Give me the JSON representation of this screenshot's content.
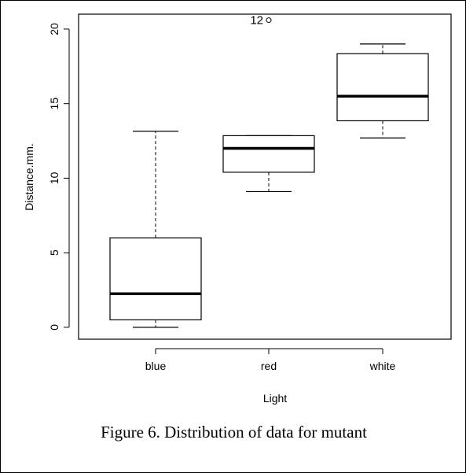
{
  "caption": "Figure 6. Distribution of data for mutant",
  "chart_data": {
    "type": "boxplot",
    "title": "",
    "xlabel": "Light",
    "ylabel": "Distance.mm.",
    "ylim": [
      -0.8,
      21.0
    ],
    "yticks": [
      0,
      5,
      10,
      15,
      20
    ],
    "categories": [
      "blue",
      "red",
      "white"
    ],
    "boxes": [
      {
        "category": "blue",
        "whisker_low": 0.0,
        "q1": 0.5,
        "median": 2.25,
        "q3": 6.0,
        "whisker_high": 13.15
      },
      {
        "category": "red",
        "whisker_low": 9.1,
        "q1": 10.4,
        "median": 12.0,
        "q3": 12.85,
        "whisker_high": 12.85
      },
      {
        "category": "white",
        "whisker_low": 12.7,
        "q1": 13.85,
        "median": 15.5,
        "q3": 18.35,
        "whisker_high": 19.0
      }
    ],
    "outliers": [
      {
        "category": "red",
        "value": 20.6,
        "label": "12"
      }
    ],
    "grid": false,
    "legend": "none"
  }
}
